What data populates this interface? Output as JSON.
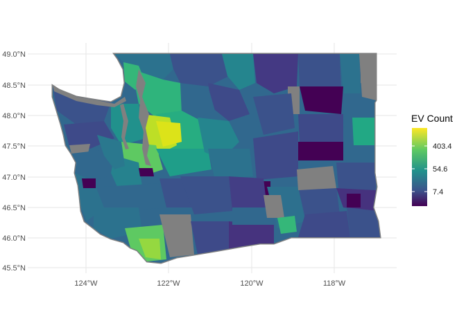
{
  "map": {
    "region": "Washington State",
    "lat_labels": [
      "49.0°N",
      "48.5°N",
      "48.0°N",
      "47.5°N",
      "47.0°N",
      "46.5°N",
      "46.0°N",
      "45.5°N"
    ],
    "lon_labels": [
      "124°W",
      "122°W",
      "120°W",
      "118°W"
    ],
    "missing_color": "#808080",
    "background": "#ffffff",
    "color_scale": "viridis (log)"
  },
  "legend": {
    "title": "EV Count",
    "labels": [
      "403.4",
      "54.6",
      "7.4"
    ],
    "colors": {
      "high": "#fde725",
      "upper": "#5ec962",
      "mid": "#21918c",
      "lower": "#3b528b",
      "low": "#440154"
    }
  }
}
